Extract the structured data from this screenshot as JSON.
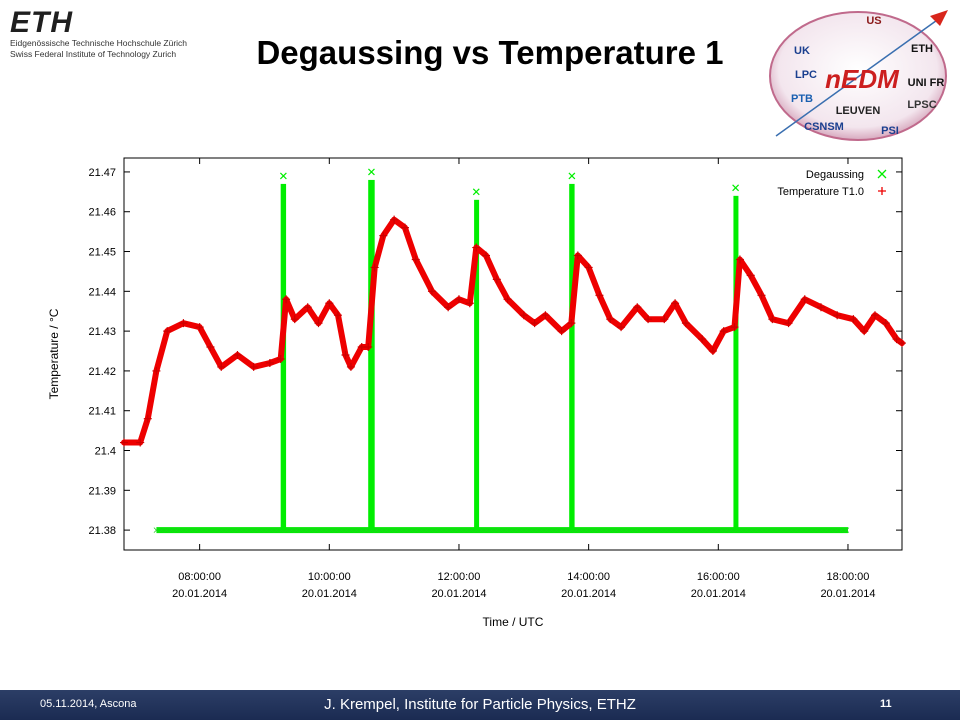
{
  "header": {
    "eth_logo_text": "ETH",
    "eth_line1": "Eidgenössische Technische Hochschule Zürich",
    "eth_line2": "Swiss Federal Institute of Technology Zurich",
    "title": "Degaussing vs Temperature 1",
    "collab_logo": {
      "center": "nEDM",
      "partners": [
        "UK",
        "US",
        "ETH",
        "LPC",
        "PTB",
        "LEUVEN",
        "UNI FR",
        "LPSC",
        "CSNSM",
        "PSI"
      ]
    }
  },
  "chart_data": {
    "type": "scatter",
    "title": "",
    "xlabel": "Time / UTC",
    "ylabel": "Temperature / °C",
    "xlim": [
      "20.01.2014 06:50",
      "20.01.2014 18:50"
    ],
    "ylim": [
      21.375,
      21.4735
    ],
    "grid": false,
    "legend_position": "top-right",
    "x_ticks": [
      {
        "time": "08:00:00",
        "date": "20.01.2014"
      },
      {
        "time": "10:00:00",
        "date": "20.01.2014"
      },
      {
        "time": "12:00:00",
        "date": "20.01.2014"
      },
      {
        "time": "14:00:00",
        "date": "20.01.2014"
      },
      {
        "time": "16:00:00",
        "date": "20.01.2014"
      },
      {
        "time": "18:00:00",
        "date": "20.01.2014"
      }
    ],
    "y_ticks": [
      "21.38",
      "21.39",
      "21.4",
      "21.41",
      "21.42",
      "21.43",
      "21.44",
      "21.45",
      "21.46",
      "21.47"
    ],
    "series": [
      {
        "name": "Degaussing",
        "marker": "x",
        "color": "#00ee00",
        "baseline": 21.38,
        "baseline_range": [
          "20.01.2014 07:20",
          "20.01.2014 18:00"
        ],
        "pulses": [
          {
            "start": "20.01.2014 09:15",
            "end": "20.01.2014 09:20",
            "peak": 21.469
          },
          {
            "start": "20.01.2014 10:36",
            "end": "20.01.2014 10:42",
            "peak": 21.47
          },
          {
            "start": "20.01.2014 12:14",
            "end": "20.01.2014 12:18",
            "peak": 21.465
          },
          {
            "start": "20.01.2014 13:42",
            "end": "20.01.2014 13:47",
            "peak": 21.469
          },
          {
            "start": "20.01.2014 16:14",
            "end": "20.01.2014 16:18",
            "peak": 21.466
          }
        ]
      },
      {
        "name": "Temperature T1.0",
        "marker": "+",
        "color": "#ee0000",
        "points": [
          [
            "20.01.2014 06:50",
            21.402
          ],
          [
            "20.01.2014 07:05",
            21.402
          ],
          [
            "20.01.2014 07:12",
            21.408
          ],
          [
            "20.01.2014 07:20",
            21.42
          ],
          [
            "20.01.2014 07:30",
            21.43
          ],
          [
            "20.01.2014 07:45",
            21.432
          ],
          [
            "20.01.2014 08:00",
            21.431
          ],
          [
            "20.01.2014 08:10",
            21.426
          ],
          [
            "20.01.2014 08:20",
            21.421
          ],
          [
            "20.01.2014 08:35",
            21.424
          ],
          [
            "20.01.2014 08:50",
            21.421
          ],
          [
            "20.01.2014 09:05",
            21.422
          ],
          [
            "20.01.2014 09:15",
            21.423
          ],
          [
            "20.01.2014 09:20",
            21.438
          ],
          [
            "20.01.2014 09:28",
            21.433
          ],
          [
            "20.01.2014 09:40",
            21.436
          ],
          [
            "20.01.2014 09:50",
            21.432
          ],
          [
            "20.01.2014 10:00",
            21.437
          ],
          [
            "20.01.2014 10:08",
            21.434
          ],
          [
            "20.01.2014 10:15",
            21.424
          ],
          [
            "20.01.2014 10:20",
            21.421
          ],
          [
            "20.01.2014 10:30",
            21.426
          ],
          [
            "20.01.2014 10:36",
            21.426
          ],
          [
            "20.01.2014 10:42",
            21.446
          ],
          [
            "20.01.2014 10:50",
            21.454
          ],
          [
            "20.01.2014 11:00",
            21.458
          ],
          [
            "20.01.2014 11:10",
            21.456
          ],
          [
            "20.01.2014 11:20",
            21.448
          ],
          [
            "20.01.2014 11:35",
            21.44
          ],
          [
            "20.01.2014 11:50",
            21.436
          ],
          [
            "20.01.2014 12:00",
            21.438
          ],
          [
            "20.01.2014 12:10",
            21.437
          ],
          [
            "20.01.2014 12:16",
            21.451
          ],
          [
            "20.01.2014 12:25",
            21.449
          ],
          [
            "20.01.2014 12:35",
            21.443
          ],
          [
            "20.01.2014 12:45",
            21.438
          ],
          [
            "20.01.2014 13:00",
            21.434
          ],
          [
            "20.01.2014 13:10",
            21.432
          ],
          [
            "20.01.2014 13:20",
            21.434
          ],
          [
            "20.01.2014 13:35",
            21.43
          ],
          [
            "20.01.2014 13:44",
            21.432
          ],
          [
            "20.01.2014 13:50",
            21.449
          ],
          [
            "20.01.2014 14:00",
            21.446
          ],
          [
            "20.01.2014 14:10",
            21.439
          ],
          [
            "20.01.2014 14:20",
            21.433
          ],
          [
            "20.01.2014 14:30",
            21.431
          ],
          [
            "20.01.2014 14:45",
            21.436
          ],
          [
            "20.01.2014 14:55",
            21.433
          ],
          [
            "20.01.2014 15:10",
            21.433
          ],
          [
            "20.01.2014 15:20",
            21.437
          ],
          [
            "20.01.2014 15:30",
            21.432
          ],
          [
            "20.01.2014 15:45",
            21.428
          ],
          [
            "20.01.2014 15:55",
            21.425
          ],
          [
            "20.01.2014 16:05",
            21.43
          ],
          [
            "20.01.2014 16:15",
            21.431
          ],
          [
            "20.01.2014 16:20",
            21.448
          ],
          [
            "20.01.2014 16:30",
            21.444
          ],
          [
            "20.01.2014 16:40",
            21.439
          ],
          [
            "20.01.2014 16:50",
            21.433
          ],
          [
            "20.01.2014 17:05",
            21.432
          ],
          [
            "20.01.2014 17:20",
            21.438
          ],
          [
            "20.01.2014 17:35",
            21.436
          ],
          [
            "20.01.2014 17:50",
            21.434
          ],
          [
            "20.01.2014 18:05",
            21.433
          ],
          [
            "20.01.2014 18:15",
            21.43
          ],
          [
            "20.01.2014 18:25",
            21.434
          ],
          [
            "20.01.2014 18:35",
            21.432
          ],
          [
            "20.01.2014 18:45",
            21.428
          ],
          [
            "20.01.2014 18:50",
            21.427
          ]
        ]
      }
    ]
  },
  "footer": {
    "left": "05.11.2014, Ascona",
    "center": "J. Krempel, Institute for Particle Physics, ETHZ",
    "page": "11"
  }
}
